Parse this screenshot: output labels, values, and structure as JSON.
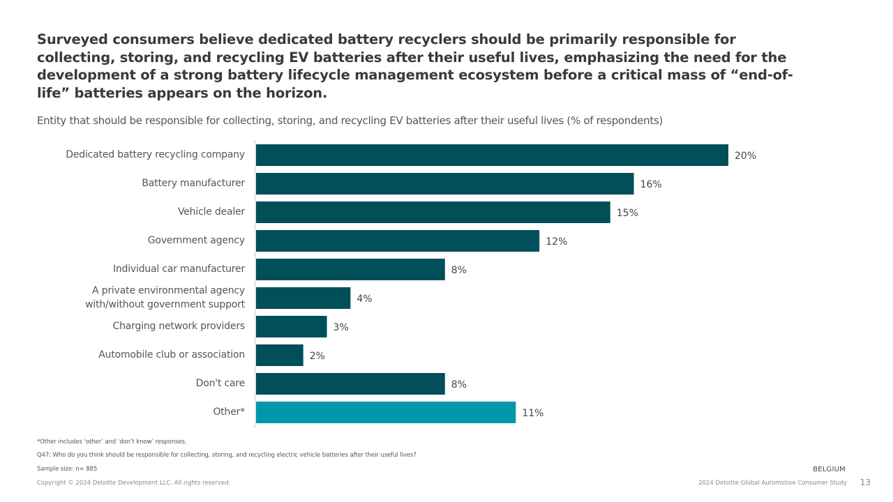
{
  "title": "Surveyed consumers believe dedicated battery recyclers should be primarily responsible for collecting, storing, and recycling EV batteries after their useful lives, emphasizing the need for the development of a strong battery lifecycle management ecosystem before a critical mass of “end-of-life” batteries appears on the horizon.",
  "subtitle": "Entity that should be responsible for collecting, storing, and recycling EV batteries after their useful lives (% of respondents)",
  "chart_data": {
    "type": "bar",
    "orientation": "horizontal",
    "categories": [
      "Dedicated battery recycling company",
      "Battery manufacturer",
      "Vehicle dealer",
      "Government agency",
      "Individual car manufacturer",
      "A private environmental agency with/without government support",
      "Charging network providers",
      "Automobile club or association",
      "Don't care",
      "Other*"
    ],
    "values": [
      20,
      16,
      15,
      12,
      8,
      4,
      3,
      2,
      8,
      11
    ],
    "value_labels": [
      "20%",
      "16%",
      "15%",
      "12%",
      "8%",
      "4%",
      "3%",
      "2%",
      "8%",
      "11%"
    ],
    "category_label_lines": [
      [
        "Dedicated battery recycling company"
      ],
      [
        "Battery manufacturer"
      ],
      [
        "Vehicle dealer"
      ],
      [
        "Government agency"
      ],
      [
        "Individual car manufacturer"
      ],
      [
        "A private environmental agency",
        "with/without government support"
      ],
      [
        "Charging network providers"
      ],
      [
        "Automobile club or association"
      ],
      [
        "Don't care"
      ],
      [
        "Other*"
      ]
    ],
    "xlim": [
      0,
      20
    ],
    "colors": [
      "#004f59",
      "#004f59",
      "#004f59",
      "#004f59",
      "#004f59",
      "#004f59",
      "#004f59",
      "#004f59",
      "#004f59",
      "#0097a9"
    ],
    "grid": false
  },
  "footnotes": [
    "*Other includes ‘other’ and ‘don’t know’ responses.",
    "Q47: Who do you think should be responsible for collecting, storing, and recycling electric vehicle batteries after their useful lives?",
    "Sample size: n= 885"
  ],
  "country": "BELGIUM",
  "copyright": "Copyright © 2024 Deloitte Development LLC. All rights reserved.",
  "study": "2024 Deloitte Global Automotive Consumer Study",
  "page_number": "13"
}
